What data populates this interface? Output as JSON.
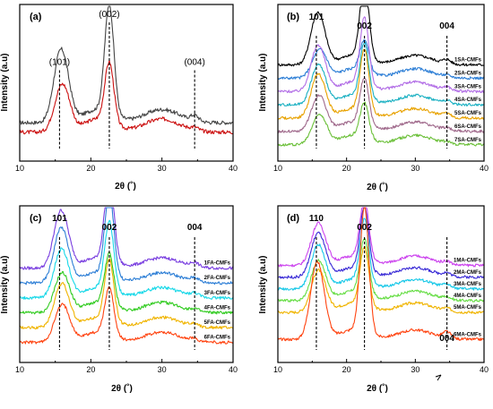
{
  "chart_data": [
    {
      "type": "line",
      "panel": "(a)",
      "xlabel": "",
      "ylabel": "Intensity (a.u)",
      "xlim": [
        10,
        40
      ],
      "x_ticks": [
        "10",
        "20",
        "30",
        "40"
      ],
      "peaks": [
        {
          "label": "(101)",
          "x": 15.6
        },
        {
          "label": "(002)",
          "x": 22.6
        },
        {
          "label": "(004)",
          "x": 34.6
        }
      ],
      "series": [
        {
          "color": "#444444",
          "offset": 0.55,
          "scale": 1.0
        },
        {
          "color": "#cc1111",
          "offset": 0.0,
          "scale": 0.55
        }
      ]
    },
    {
      "type": "line",
      "panel": "(b)",
      "xlabel": "2θ (˚)",
      "ylabel": "Intensity (a.u)",
      "xlim": [
        10,
        40
      ],
      "x_ticks": [
        "10",
        "20",
        "30",
        "40"
      ],
      "peaks": [
        {
          "label": "101",
          "x": 15.6
        },
        {
          "label": "002",
          "x": 22.6
        },
        {
          "label": "004",
          "x": 34.6
        }
      ],
      "series": [
        {
          "name": "1SA-CMFs",
          "color": "#000000",
          "offset": 6.0,
          "scale": 1.0
        },
        {
          "name": "2SA-CMFs",
          "color": "#2e7fd6",
          "offset": 5.0,
          "scale": 0.4
        },
        {
          "name": "3SA-CMFs",
          "color": "#b26ee6",
          "offset": 4.0,
          "scale": 0.85
        },
        {
          "name": "4SA-CMFs",
          "color": "#1ab0c2",
          "offset": 3.0,
          "scale": 0.7
        },
        {
          "name": "5SA-CMFs",
          "color": "#e8a200",
          "offset": 2.0,
          "scale": 0.8
        },
        {
          "name": "6SA-CMFs",
          "color": "#a06a8c",
          "offset": 1.0,
          "scale": 0.6
        },
        {
          "name": "7SA-CMFs",
          "color": "#6cc03a",
          "offset": 0.0,
          "scale": 0.45
        }
      ]
    },
    {
      "type": "line",
      "panel": "(c)",
      "xlabel": "2θ (˚)",
      "ylabel": "Intensity (a.u)",
      "xlim": [
        10,
        40
      ],
      "x_ticks": [
        "10",
        "20",
        "30",
        "40"
      ],
      "peaks": [
        {
          "label": "101",
          "x": 15.6
        },
        {
          "label": "002",
          "x": 22.6
        },
        {
          "label": "004",
          "x": 34.6
        }
      ],
      "series": [
        {
          "name": "1FA-CMFs",
          "color": "#7a3fe0",
          "offset": 5.0,
          "scale": 1.0
        },
        {
          "name": "2FA-CMFs",
          "color": "#2e7fd6",
          "offset": 4.0,
          "scale": 0.95
        },
        {
          "name": "3FA-CMFs",
          "color": "#17d8e8",
          "offset": 3.0,
          "scale": 0.8
        },
        {
          "name": "4FA-CMFs",
          "color": "#33cc22",
          "offset": 2.0,
          "scale": 0.6
        },
        {
          "name": "5FA-CMFs",
          "color": "#f0b400",
          "offset": 1.0,
          "scale": 0.7
        },
        {
          "name": "6FA-CMFs",
          "color": "#ff4411",
          "offset": 0.0,
          "scale": 0.55
        }
      ]
    },
    {
      "type": "line",
      "panel": "(d)",
      "xlabel": "2θ (˚)",
      "ylabel": "Intensity (a.u)",
      "xlim": [
        10,
        40
      ],
      "x_ticks": [
        "10",
        "20",
        "30",
        "40"
      ],
      "peaks": [
        {
          "label": "110",
          "x": 15.6
        },
        {
          "label": "002",
          "x": 22.6
        },
        {
          "label": "004",
          "x": 34.6
        }
      ],
      "series": [
        {
          "name": "1MA-CMFs",
          "color": "#cc44ee",
          "offset": 5.0,
          "scale": 0.75
        },
        {
          "name": "2MA-CMFs",
          "color": "#3a2bd6",
          "offset": 4.0,
          "scale": 0.8
        },
        {
          "name": "3MA-CMFs",
          "color": "#17c8e8",
          "offset": 3.0,
          "scale": 0.8
        },
        {
          "name": "4MA-CMFs",
          "color": "#66dd44",
          "offset": 2.0,
          "scale": 0.7
        },
        {
          "name": "5MA-CMFs",
          "color": "#f0b400",
          "offset": 1.0,
          "scale": 0.75
        },
        {
          "name": "6MA-CMFs",
          "color": "#ff4411",
          "offset": -1.3,
          "scale": 1.6
        }
      ]
    }
  ]
}
